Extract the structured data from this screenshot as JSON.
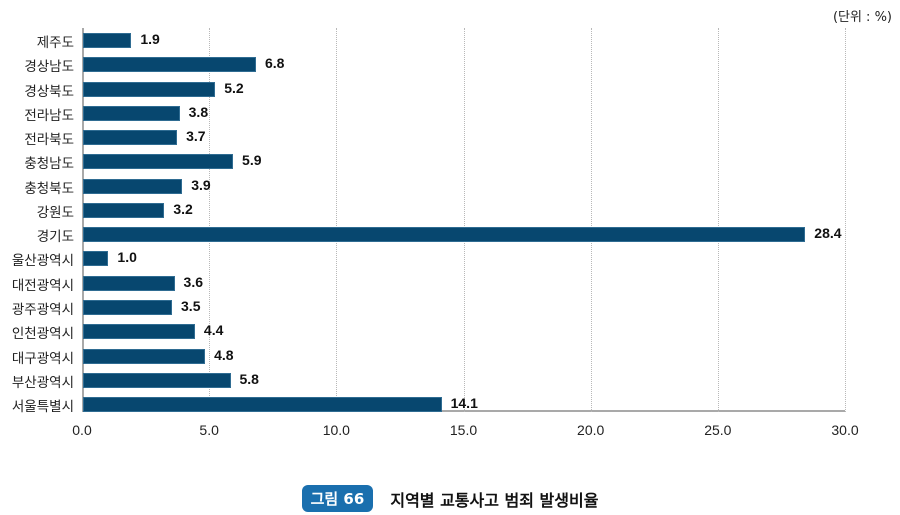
{
  "unit_label": "(단위 : %)",
  "caption": {
    "badge": "그림 66",
    "title": "지역별 교통사고 범죄 발생비율"
  },
  "axis": {
    "ticks": [
      "0.0",
      "5.0",
      "10.0",
      "15.0",
      "20.0",
      "25.0",
      "30.0"
    ]
  },
  "colors": {
    "bar": "#07476f",
    "badge": "#1a6fae"
  },
  "rows": [
    {
      "label": "제주도",
      "value": "1.9"
    },
    {
      "label": "경상남도",
      "value": "6.8"
    },
    {
      "label": "경상북도",
      "value": "5.2"
    },
    {
      "label": "전라남도",
      "value": "3.8"
    },
    {
      "label": "전라북도",
      "value": "3.7"
    },
    {
      "label": "충청남도",
      "value": "5.9"
    },
    {
      "label": "충청북도",
      "value": "3.9"
    },
    {
      "label": "강원도",
      "value": "3.2"
    },
    {
      "label": "경기도",
      "value": "28.4"
    },
    {
      "label": "울산광역시",
      "value": "1.0"
    },
    {
      "label": "대전광역시",
      "value": "3.6"
    },
    {
      "label": "광주광역시",
      "value": "3.5"
    },
    {
      "label": "인천광역시",
      "value": "4.4"
    },
    {
      "label": "대구광역시",
      "value": "4.8"
    },
    {
      "label": "부산광역시",
      "value": "5.8"
    },
    {
      "label": "서울특별시",
      "value": "14.1"
    }
  ],
  "chart_data": {
    "type": "bar",
    "orientation": "horizontal",
    "title": "지역별 교통사고 범죄 발생비율",
    "figure_label": "그림 66",
    "unit": "%",
    "categories": [
      "제주도",
      "경상남도",
      "경상북도",
      "전라남도",
      "전라북도",
      "충청남도",
      "충청북도",
      "강원도",
      "경기도",
      "울산광역시",
      "대전광역시",
      "광주광역시",
      "인천광역시",
      "대구광역시",
      "부산광역시",
      "서울특별시"
    ],
    "values": [
      1.9,
      6.8,
      5.2,
      3.8,
      3.7,
      5.9,
      3.9,
      3.2,
      28.4,
      1.0,
      3.6,
      3.5,
      4.4,
      4.8,
      5.8,
      14.1
    ],
    "xlabel": "",
    "ylabel": "",
    "xlim": [
      0,
      30
    ],
    "xticks": [
      0,
      5,
      10,
      15,
      20,
      25,
      30
    ],
    "grid": "vertical dotted",
    "legend": "none",
    "data_labels": true
  }
}
